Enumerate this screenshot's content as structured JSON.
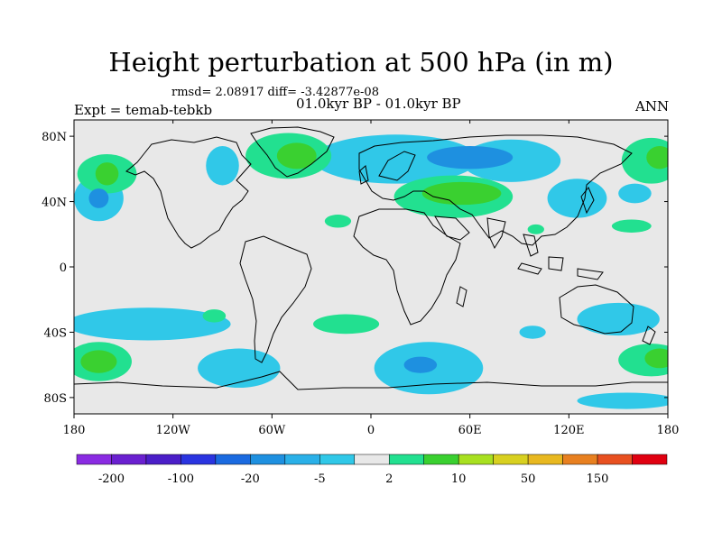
{
  "title": "Height perturbation at 500 hPa (in m)",
  "stats": "rmsd= 2.08917 diff= -3.42877e-08",
  "period": "01.0kyr BP - 01.0kyr BP",
  "experiment": "Expt = temab-tebkb",
  "season": "ANN",
  "map": {
    "lon_range": [
      -180,
      180
    ],
    "lat_range": [
      -90,
      90
    ],
    "lat_ticks": [
      {
        "value": 80,
        "label": "80N"
      },
      {
        "value": 40,
        "label": "40N"
      },
      {
        "value": 0,
        "label": "0"
      },
      {
        "value": -40,
        "label": "40S"
      },
      {
        "value": -80,
        "label": "80S"
      }
    ],
    "lon_ticks": [
      {
        "value": -180,
        "label": "180"
      },
      {
        "value": -120,
        "label": "120W"
      },
      {
        "value": -60,
        "label": "60W"
      },
      {
        "value": 0,
        "label": "0"
      },
      {
        "value": 60,
        "label": "60E"
      },
      {
        "value": 120,
        "label": "120E"
      },
      {
        "value": 180,
        "label": "180"
      }
    ],
    "background_color": "#e8e8e8",
    "coastline_color": "#000000"
  },
  "colorbar": {
    "colors": [
      "#8a2be2",
      "#6a20d0",
      "#4b1ec8",
      "#2a34e0",
      "#1a6ae0",
      "#1e90e0",
      "#2ab0e8",
      "#30c8e8",
      "#e8e8e8",
      "#22e090",
      "#3ad030",
      "#a8e020",
      "#d8d020",
      "#e8b820",
      "#e88020",
      "#e85020",
      "#e00010"
    ],
    "labels": [
      {
        "index": 1,
        "label": "-200"
      },
      {
        "index": 3,
        "label": "-100"
      },
      {
        "index": 5,
        "label": "-20"
      },
      {
        "index": 7,
        "label": "-5"
      },
      {
        "index": 9,
        "label": "2"
      },
      {
        "index": 11,
        "label": "10"
      },
      {
        "index": 13,
        "label": "50"
      },
      {
        "index": 15,
        "label": "150"
      }
    ]
  },
  "fields": {
    "positive": [
      {
        "lon": -160,
        "lat": 57,
        "rx": 18,
        "ry": 12
      },
      {
        "lon": -50,
        "lat": 68,
        "rx": 26,
        "ry": 14
      },
      {
        "lon": -20,
        "lat": 28,
        "rx": 8,
        "ry": 4
      },
      {
        "lon": 50,
        "lat": 43,
        "rx": 36,
        "ry": 13
      },
      {
        "lon": 170,
        "lat": 65,
        "rx": 18,
        "ry": 14
      },
      {
        "lon": 158,
        "lat": 25,
        "rx": 12,
        "ry": 4
      },
      {
        "lon": -95,
        "lat": -30,
        "rx": 7,
        "ry": 4
      },
      {
        "lon": -15,
        "lat": -35,
        "rx": 20,
        "ry": 6
      },
      {
        "lon": -165,
        "lat": -58,
        "rx": 20,
        "ry": 12
      },
      {
        "lon": 170,
        "lat": -57,
        "rx": 20,
        "ry": 10
      },
      {
        "lon": 100,
        "lat": 23,
        "rx": 5,
        "ry": 3
      }
    ],
    "negative": [
      {
        "lon": -165,
        "lat": 42,
        "rx": 15,
        "ry": 14
      },
      {
        "lon": -90,
        "lat": 62,
        "rx": 10,
        "ry": 12
      },
      {
        "lon": 15,
        "lat": 66,
        "rx": 50,
        "ry": 15
      },
      {
        "lon": 85,
        "lat": 65,
        "rx": 30,
        "ry": 13
      },
      {
        "lon": 125,
        "lat": 42,
        "rx": 18,
        "ry": 12
      },
      {
        "lon": 160,
        "lat": 45,
        "rx": 10,
        "ry": 6
      },
      {
        "lon": -135,
        "lat": -35,
        "rx": 50,
        "ry": 10
      },
      {
        "lon": -80,
        "lat": -62,
        "rx": 25,
        "ry": 12
      },
      {
        "lon": 35,
        "lat": -62,
        "rx": 33,
        "ry": 16
      },
      {
        "lon": 150,
        "lat": -32,
        "rx": 25,
        "ry": 10
      },
      {
        "lon": 155,
        "lat": -82,
        "rx": 30,
        "ry": 5
      },
      {
        "lon": 98,
        "lat": -40,
        "rx": 8,
        "ry": 4
      }
    ],
    "strong_positive": [
      {
        "lon": -160,
        "lat": 57,
        "rx": 7,
        "ry": 7
      },
      {
        "lon": -45,
        "lat": 68,
        "rx": 12,
        "ry": 8
      },
      {
        "lon": 55,
        "lat": 45,
        "rx": 24,
        "ry": 7
      },
      {
        "lon": -165,
        "lat": -58,
        "rx": 11,
        "ry": 7
      },
      {
        "lon": 175,
        "lat": -56,
        "rx": 9,
        "ry": 6
      },
      {
        "lon": 175,
        "lat": 67,
        "rx": 8,
        "ry": 7
      }
    ],
    "strong_negative": [
      {
        "lon": -165,
        "lat": 42,
        "rx": 6,
        "ry": 6
      },
      {
        "lon": 60,
        "lat": 67,
        "rx": 26,
        "ry": 7
      },
      {
        "lon": 30,
        "lat": -60,
        "rx": 10,
        "ry": 5
      }
    ]
  }
}
